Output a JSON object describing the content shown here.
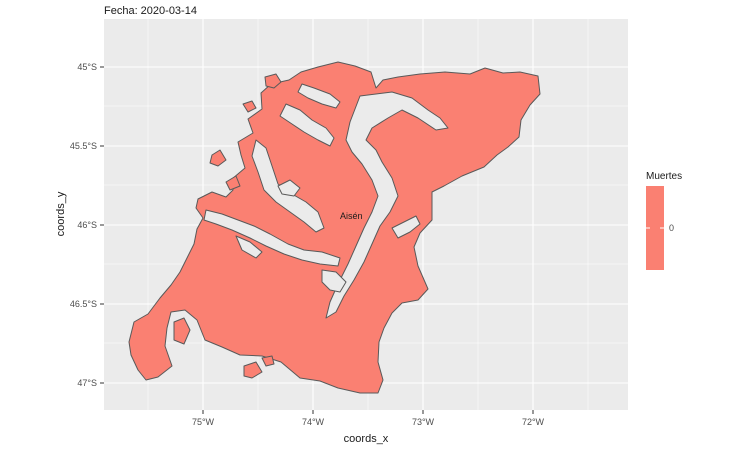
{
  "title": "Fecha: 2020-03-14",
  "xlabel": "coords_x",
  "ylabel": "coords_y",
  "legend": {
    "title": "Muertes",
    "label": "0"
  },
  "map_label": "Aisén",
  "colors": {
    "panel": "#ebebeb",
    "grid": "#ffffff",
    "fill": "#fa8072",
    "outline": "#595959"
  },
  "chart_data": {
    "type": "map",
    "x_ticks": [
      "75°W",
      "74°W",
      "73°W",
      "72°W"
    ],
    "y_ticks": [
      "45°S",
      "45.5°S",
      "46°S",
      "46.5°S",
      "47°S"
    ],
    "xlim": [
      -75.9,
      -71.1
    ],
    "ylim": [
      -47.2,
      -44.75
    ],
    "series": [
      {
        "region": "Aisén",
        "value": 0
      }
    ]
  }
}
